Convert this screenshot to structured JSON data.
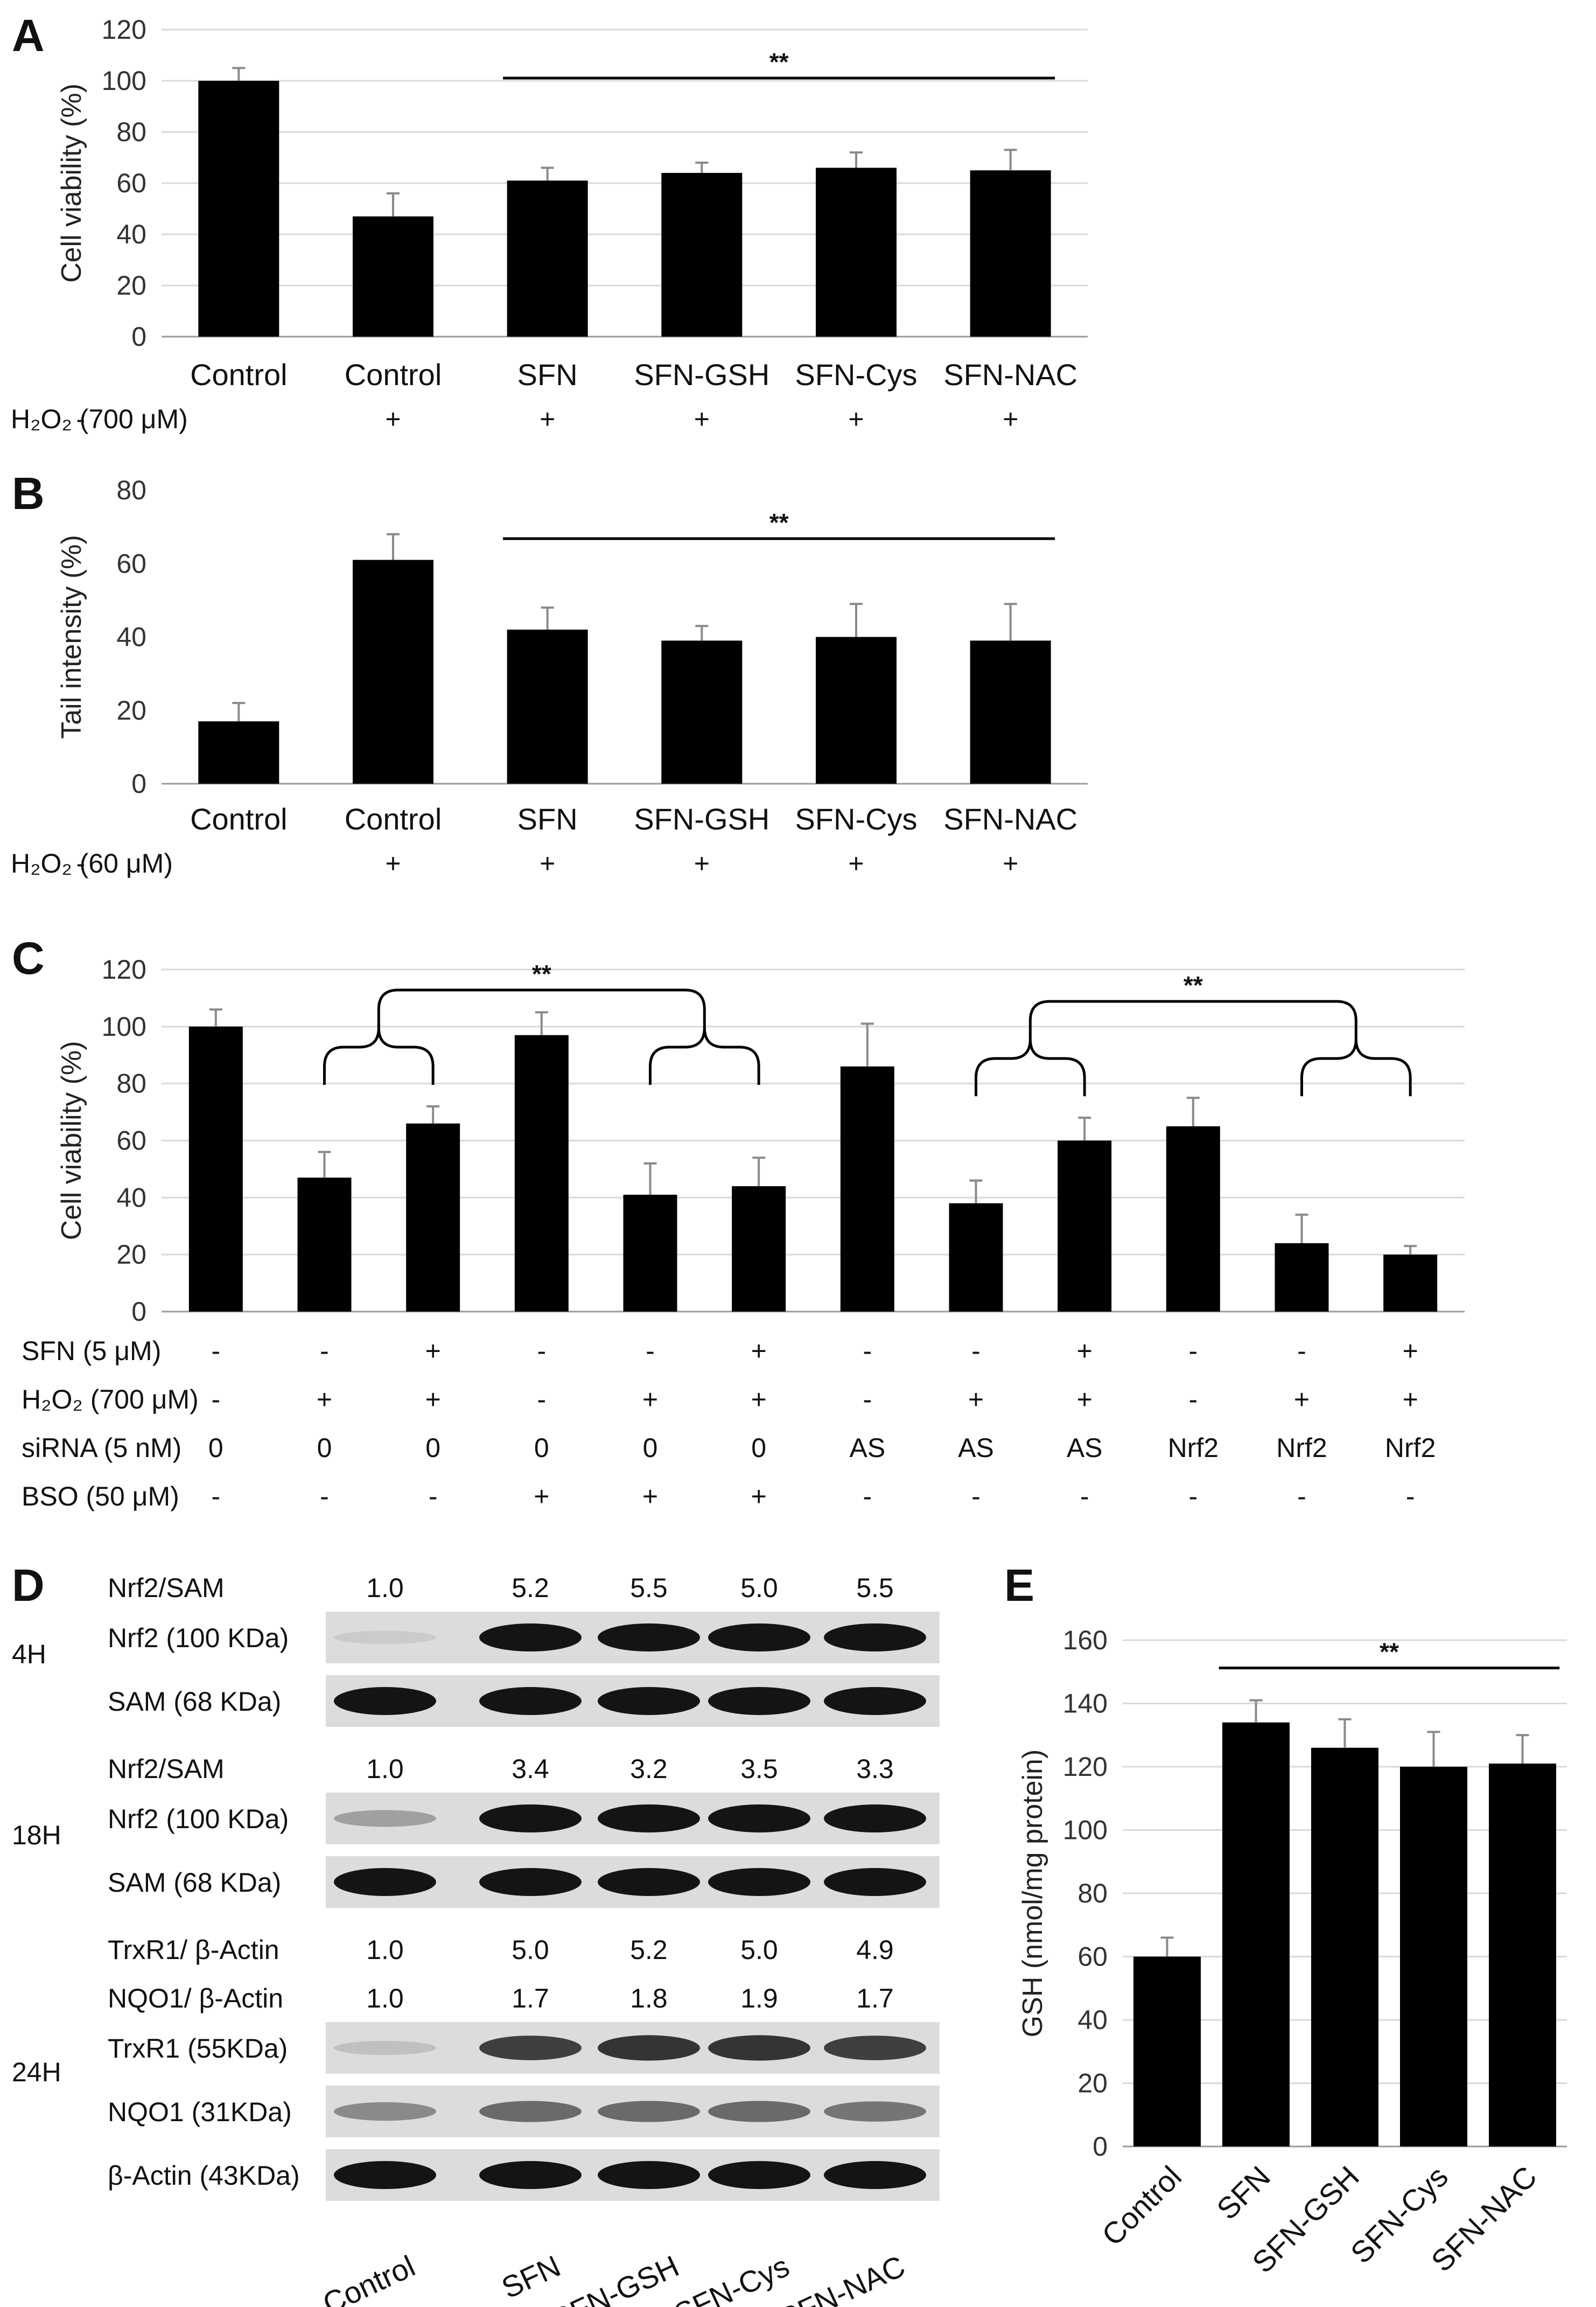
{
  "panels": {
    "A": {
      "letter": "A"
    },
    "B": {
      "letter": "B"
    },
    "C": {
      "letter": "C"
    },
    "D": {
      "letter": "D"
    },
    "E": {
      "letter": "E"
    }
  },
  "chart_data": [
    {
      "id": "A",
      "type": "bar",
      "ylabel": "Cell viability  (%)",
      "ylim": [
        0,
        120
      ],
      "ytick_step": 20,
      "categories": [
        "Control",
        "Control",
        "SFN",
        "SFN-GSH",
        "SFN-Cys",
        "SFN-NAC"
      ],
      "values": [
        100,
        47,
        61,
        64,
        66,
        65
      ],
      "errors": [
        5,
        9,
        5,
        4,
        6,
        8
      ],
      "treatment_rows": [
        {
          "label": "H₂O₂ (700 μM)",
          "values": [
            "-",
            "+",
            "+",
            "+",
            "+",
            "+"
          ]
        }
      ],
      "significance": [
        {
          "from": 2,
          "to": 5,
          "label": "**"
        }
      ],
      "grid": true
    },
    {
      "id": "B",
      "type": "bar",
      "ylabel": "Tail intensity (%)",
      "ylim": [
        0,
        80
      ],
      "ytick_step": 20,
      "categories": [
        "Control",
        "Control",
        "SFN",
        "SFN-GSH",
        "SFN-Cys",
        "SFN-NAC"
      ],
      "values": [
        17,
        61,
        42,
        39,
        40,
        39
      ],
      "errors": [
        5,
        7,
        6,
        4,
        9,
        10
      ],
      "treatment_rows": [
        {
          "label": "H₂O₂ (60 μM)",
          "values": [
            "-",
            "+",
            "+",
            "+",
            "+",
            "+"
          ]
        }
      ],
      "significance": [
        {
          "from": 2,
          "to": 5,
          "label": "**"
        }
      ],
      "grid": false
    },
    {
      "id": "C",
      "type": "bar",
      "ylabel": "Cell viability  (%)",
      "ylim": [
        0,
        120
      ],
      "ytick_step": 20,
      "categories": [
        "",
        "",
        "",
        "",
        "",
        "",
        "",
        "",
        "",
        "",
        "",
        ""
      ],
      "values": [
        100,
        47,
        66,
        97,
        41,
        44,
        86,
        38,
        60,
        65,
        24,
        20
      ],
      "errors": [
        6,
        9,
        6,
        8,
        11,
        10,
        15,
        8,
        8,
        10,
        10,
        3
      ],
      "treatment_rows": [
        {
          "label": "SFN (5 μM)",
          "values": [
            "-",
            "-",
            "+",
            "-",
            "-",
            "+",
            "-",
            "-",
            "+",
            "-",
            "-",
            "+"
          ]
        },
        {
          "label": "H₂O₂ (700 μM)",
          "values": [
            "-",
            "+",
            "+",
            "-",
            "+",
            "+",
            "-",
            "+",
            "+",
            "-",
            "+",
            "+"
          ]
        },
        {
          "label": "siRNA (5 nM)",
          "values": [
            "0",
            "0",
            "0",
            "0",
            "0",
            "0",
            "AS",
            "AS",
            "AS",
            "Nrf2",
            "Nrf2",
            "Nrf2"
          ]
        },
        {
          "label": "BSO (50 μM)",
          "values": [
            "-",
            "-",
            "-",
            "+",
            "+",
            "+",
            "-",
            "-",
            "-",
            "-",
            "-",
            "-"
          ]
        }
      ],
      "brackets": [
        {
          "left": [
            1,
            2
          ],
          "right": [
            4,
            5
          ],
          "label": "**"
        },
        {
          "left": [
            7,
            8
          ],
          "right": [
            10,
            11
          ],
          "label": "**"
        }
      ],
      "grid": true
    },
    {
      "id": "E",
      "type": "bar",
      "ylabel": "GSH (nmol/mg protein)",
      "ylim": [
        0,
        160
      ],
      "ytick_step": 20,
      "categories": [
        "Control",
        "SFN",
        "SFN-GSH",
        "SFN-Cys",
        "SFN-NAC"
      ],
      "values": [
        60,
        134,
        126,
        120,
        121
      ],
      "errors": [
        6,
        7,
        9,
        11,
        9
      ],
      "significance": [
        {
          "from": 1,
          "to": 4,
          "label": "**"
        }
      ],
      "grid": true
    }
  ],
  "blot": {
    "groups": [
      {
        "time": "4H",
        "ratio_rows": [
          {
            "label": "Nrf2/SAM",
            "values": [
              "1.0",
              "5.2",
              "5.5",
              "5.0",
              "5.5"
            ]
          }
        ],
        "bands": [
          {
            "label": "Nrf2 (100 KDa)",
            "intensity": [
              0.15,
              1,
              1,
              1,
              1
            ]
          },
          {
            "label": "SAM (68 KDa)",
            "intensity": [
              1,
              1,
              1,
              1,
              1
            ]
          }
        ]
      },
      {
        "time": "18H",
        "ratio_rows": [
          {
            "label": "Nrf2/SAM",
            "values": [
              "1.0",
              "3.4",
              "3.2",
              "3.5",
              "3.3"
            ]
          }
        ],
        "bands": [
          {
            "label": "Nrf2 (100 KDa)",
            "intensity": [
              0.35,
              1,
              1,
              1,
              1
            ]
          },
          {
            "label": "SAM (68 KDa)",
            "intensity": [
              1,
              1,
              1,
              1,
              1
            ]
          }
        ]
      },
      {
        "time": "24H",
        "ratio_rows": [
          {
            "label": "TrxR1/ β-Actin",
            "values": [
              "1.0",
              "5.0",
              "5.2",
              "5.0",
              "4.9"
            ]
          },
          {
            "label": "NQO1/ β-Actin",
            "values": [
              "1.0",
              "1.7",
              "1.8",
              "1.9",
              "1.7"
            ]
          }
        ],
        "bands": [
          {
            "label": "TrxR1 (55KDa)",
            "intensity": [
              0.2,
              0.8,
              0.85,
              0.85,
              0.8
            ]
          },
          {
            "label": "NQO1 (31KDa)",
            "intensity": [
              0.45,
              0.6,
              0.6,
              0.6,
              0.55
            ]
          },
          {
            "label": "β-Actin (43KDa)",
            "intensity": [
              1,
              1,
              1,
              1,
              1
            ]
          }
        ]
      }
    ],
    "lanes": [
      "Control",
      "SFN",
      "SFN-GSH",
      "SFN-Cys",
      "SFN-NAC"
    ]
  }
}
